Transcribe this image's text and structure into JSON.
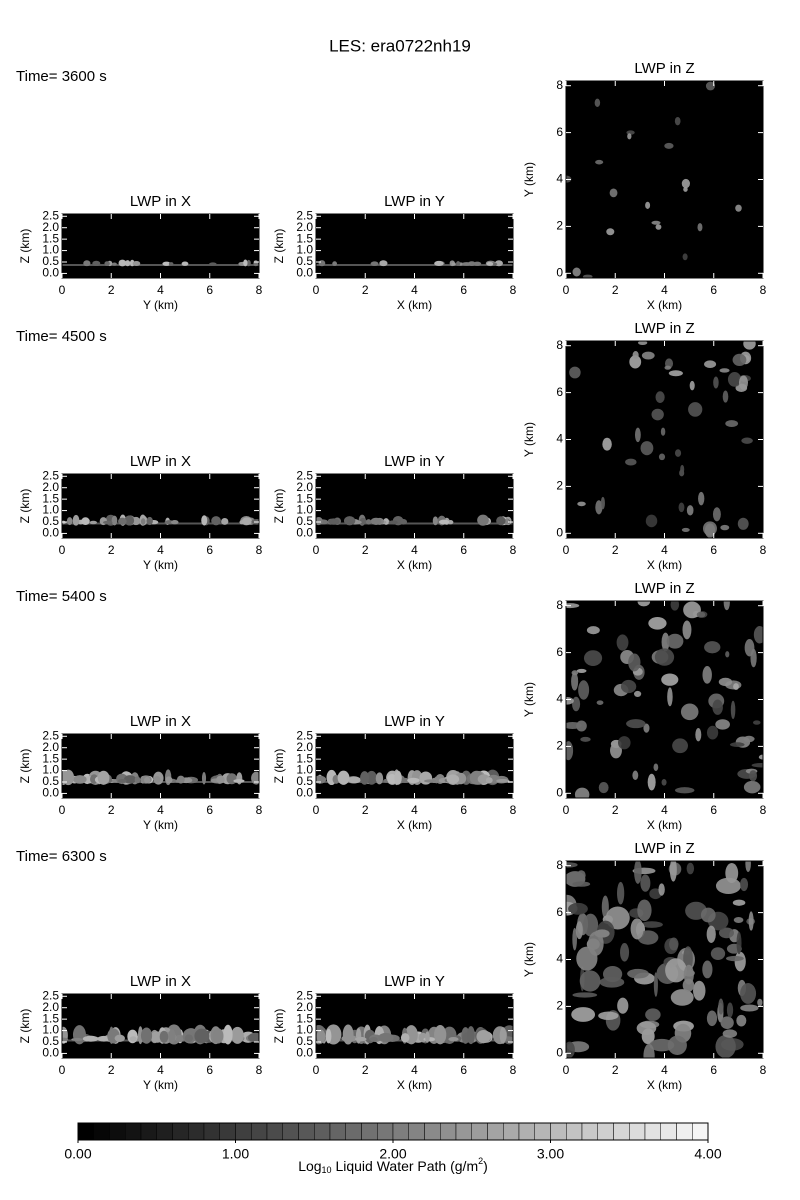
{
  "title": "LES: era0722nh19",
  "time_labels": [
    "Time= 3600 s",
    "Time= 4500 s",
    "Time= 5400 s",
    "Time= 6300 s"
  ],
  "chart_data": [
    {
      "type": "image",
      "title": "LWP in X",
      "xlabel": "Y (km)",
      "ylabel": "Z (km)",
      "xlim": [
        0,
        8
      ],
      "ylim": [
        -0.2,
        2.6
      ],
      "xticks": [
        0,
        2,
        4,
        6,
        8
      ],
      "yticks": [
        {
          "value": 0,
          "label": "0.0"
        },
        0.5,
        {
          "value": 1,
          "label": "1.0"
        },
        1.5,
        {
          "value": 2,
          "label": "2.0"
        },
        2.5
      ]
    },
    {
      "type": "image",
      "title": "LWP in Y",
      "xlabel": "X (km)",
      "ylabel": "Z (km)",
      "xlim": [
        0,
        8
      ],
      "ylim": [
        -0.2,
        2.6
      ],
      "xticks": [
        0,
        2,
        4,
        6,
        8
      ],
      "yticks": [
        {
          "value": 0,
          "label": "0.0"
        },
        0.5,
        {
          "value": 1,
          "label": "1.0"
        },
        1.5,
        {
          "value": 2,
          "label": "2.0"
        },
        2.5
      ]
    },
    {
      "type": "image",
      "title": "LWP in Z",
      "xlabel": "X (km)",
      "ylabel": "Y (km)",
      "xlim": [
        0,
        8
      ],
      "ylim": [
        -0.2,
        8.2
      ],
      "xticks": [
        0,
        2,
        4,
        6,
        8
      ],
      "yticks": [
        0,
        2,
        4,
        6,
        8
      ]
    },
    {
      "type": "image",
      "title": "LWP in X",
      "xlabel": "Y (km)",
      "ylabel": "Z (km)",
      "xlim": [
        0,
        8
      ],
      "ylim": [
        -0.2,
        2.6
      ],
      "xticks": [
        0,
        2,
        4,
        6,
        8
      ],
      "yticks": [
        {
          "value": 0,
          "label": "0.0"
        },
        0.5,
        {
          "value": 1,
          "label": "1.0"
        },
        1.5,
        {
          "value": 2,
          "label": "2.0"
        },
        2.5
      ]
    },
    {
      "type": "image",
      "title": "LWP in Y",
      "xlabel": "X (km)",
      "ylabel": "Z (km)",
      "xlim": [
        0,
        8
      ],
      "ylim": [
        -0.2,
        2.6
      ],
      "xticks": [
        0,
        2,
        4,
        6,
        8
      ],
      "yticks": [
        {
          "value": 0,
          "label": "0.0"
        },
        0.5,
        {
          "value": 1,
          "label": "1.0"
        },
        1.5,
        {
          "value": 2,
          "label": "2.0"
        },
        2.5
      ]
    },
    {
      "type": "image",
      "title": "LWP in Z",
      "xlabel": "X (km)",
      "ylabel": "Y (km)",
      "xlim": [
        0,
        8
      ],
      "ylim": [
        -0.2,
        8.2
      ],
      "xticks": [
        0,
        2,
        4,
        6,
        8
      ],
      "yticks": [
        0,
        2,
        4,
        6,
        8
      ]
    },
    {
      "type": "image",
      "title": "LWP in X",
      "xlabel": "Y (km)",
      "ylabel": "Z (km)",
      "xlim": [
        0,
        8
      ],
      "ylim": [
        -0.2,
        2.6
      ],
      "xticks": [
        0,
        2,
        4,
        6,
        8
      ],
      "yticks": [
        {
          "value": 0,
          "label": "0.0"
        },
        0.5,
        {
          "value": 1,
          "label": "1.0"
        },
        1.5,
        {
          "value": 2,
          "label": "2.0"
        },
        2.5
      ]
    },
    {
      "type": "image",
      "title": "LWP in Y",
      "xlabel": "X (km)",
      "ylabel": "Z (km)",
      "xlim": [
        0,
        8
      ],
      "ylim": [
        -0.2,
        2.6
      ],
      "xticks": [
        0,
        2,
        4,
        6,
        8
      ],
      "yticks": [
        {
          "value": 0,
          "label": "0.0"
        },
        0.5,
        {
          "value": 1,
          "label": "1.0"
        },
        1.5,
        {
          "value": 2,
          "label": "2.0"
        },
        2.5
      ]
    },
    {
      "type": "image",
      "title": "LWP in Z",
      "xlabel": "X (km)",
      "ylabel": "Y (km)",
      "xlim": [
        0,
        8
      ],
      "ylim": [
        -0.2,
        8.2
      ],
      "xticks": [
        0,
        2,
        4,
        6,
        8
      ],
      "yticks": [
        0,
        2,
        4,
        6,
        8
      ]
    },
    {
      "type": "image",
      "title": "LWP in X",
      "xlabel": "Y (km)",
      "ylabel": "Z (km)",
      "xlim": [
        0,
        8
      ],
      "ylim": [
        -0.2,
        2.6
      ],
      "xticks": [
        0,
        2,
        4,
        6,
        8
      ],
      "yticks": [
        {
          "value": 0,
          "label": "0.0"
        },
        0.5,
        {
          "value": 1,
          "label": "1.0"
        },
        1.5,
        {
          "value": 2,
          "label": "2.0"
        },
        2.5
      ]
    },
    {
      "type": "image",
      "title": "LWP in Y",
      "xlabel": "X (km)",
      "ylabel": "Z (km)",
      "xlim": [
        0,
        8
      ],
      "ylim": [
        -0.2,
        2.6
      ],
      "xticks": [
        0,
        2,
        4,
        6,
        8
      ],
      "yticks": [
        {
          "value": 0,
          "label": "0.0"
        },
        0.5,
        {
          "value": 1,
          "label": "1.0"
        },
        1.5,
        {
          "value": 2,
          "label": "2.0"
        },
        2.5
      ]
    },
    {
      "type": "image",
      "title": "LWP in Z",
      "xlabel": "X (km)",
      "ylabel": "Y (km)",
      "xlim": [
        0,
        8
      ],
      "ylim": [
        -0.2,
        8.2
      ],
      "xticks": [
        0,
        2,
        4,
        6,
        8
      ],
      "yticks": [
        0,
        2,
        4,
        6,
        8
      ]
    },
    {
      "type": "colorbar",
      "label": {
        "base": "Log",
        "sub": "10",
        "mid": " Liquid Water Path (g/m",
        "sup": "2",
        "end": ")"
      },
      "xlim": [
        0,
        4
      ],
      "xticks": [
        {
          "value": 0,
          "label": "0.00"
        },
        {
          "value": 1,
          "label": "1.00"
        },
        {
          "value": 2,
          "label": "2.00"
        },
        {
          "value": 3,
          "label": "3.00"
        },
        {
          "value": 4,
          "label": "4.00"
        }
      ]
    }
  ]
}
